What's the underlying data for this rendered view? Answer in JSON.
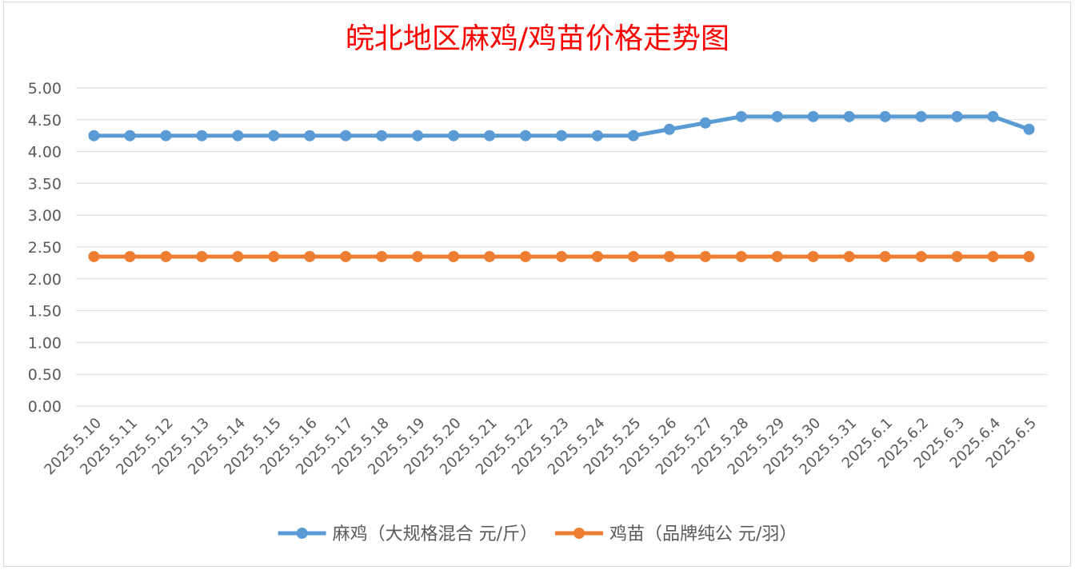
{
  "chart_data": {
    "type": "line",
    "title": "皖北地区麻鸡/鸡苗价格走势图",
    "title_color": "#ff0000",
    "categories": [
      "2025.5.10",
      "2025.5.11",
      "2025.5.12",
      "2025.5.13",
      "2025.5.14",
      "2025.5.15",
      "2025.5.16",
      "2025.5.17",
      "2025.5.18",
      "2025.5.19",
      "2025.5.20",
      "2025.5.21",
      "2025.5.22",
      "2025.5.23",
      "2025.5.24",
      "2025.5.25",
      "2025.5.26",
      "2025.5.27",
      "2025.5.28",
      "2025.5.29",
      "2025.5.30",
      "2025.5.31",
      "2025.6.1",
      "2025.6.2",
      "2025.6.3",
      "2025.6.4",
      "2025.6.5"
    ],
    "series": [
      {
        "name": "麻鸡（大规格混合 元/斤）",
        "color": "#5b9bd5",
        "values": [
          4.25,
          4.25,
          4.25,
          4.25,
          4.25,
          4.25,
          4.25,
          4.25,
          4.25,
          4.25,
          4.25,
          4.25,
          4.25,
          4.25,
          4.25,
          4.25,
          4.35,
          4.45,
          4.55,
          4.55,
          4.55,
          4.55,
          4.55,
          4.55,
          4.55,
          4.55,
          4.35
        ]
      },
      {
        "name": "鸡苗（品牌纯公 元/羽）",
        "color": "#ed7d31",
        "values": [
          2.35,
          2.35,
          2.35,
          2.35,
          2.35,
          2.35,
          2.35,
          2.35,
          2.35,
          2.35,
          2.35,
          2.35,
          2.35,
          2.35,
          2.35,
          2.35,
          2.35,
          2.35,
          2.35,
          2.35,
          2.35,
          2.35,
          2.35,
          2.35,
          2.35,
          2.35,
          2.35
        ]
      }
    ],
    "y_ticks": [
      "0.00",
      "0.50",
      "1.00",
      "1.50",
      "2.00",
      "2.50",
      "3.00",
      "3.50",
      "4.00",
      "4.50",
      "5.00"
    ],
    "ylim": [
      0,
      5
    ],
    "grid": true,
    "legend_position": "bottom",
    "xlabel": "",
    "ylabel": ""
  }
}
